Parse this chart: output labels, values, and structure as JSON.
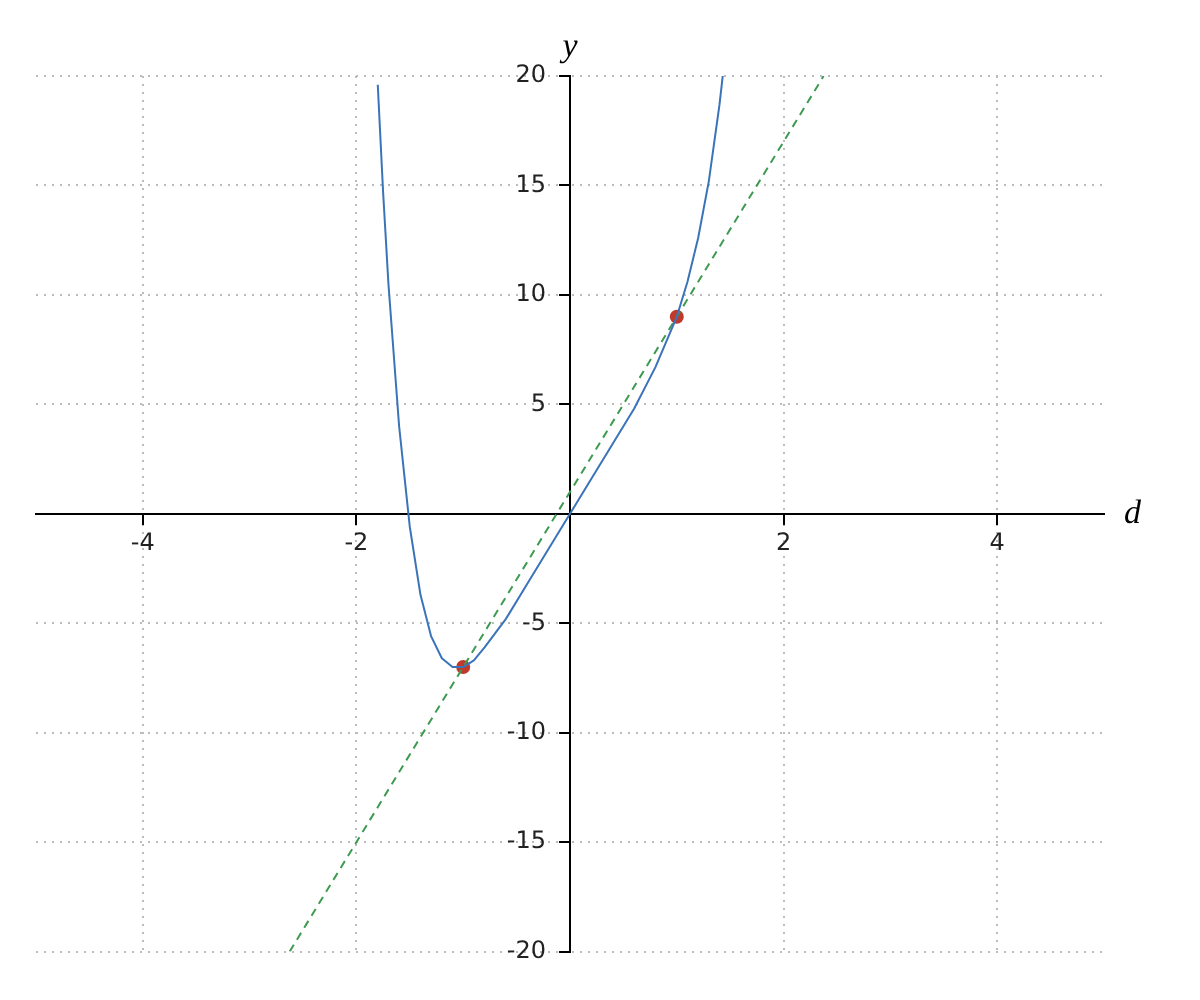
{
  "chart_data": {
    "type": "line",
    "xlabel": "d",
    "ylabel": "y",
    "xlim": [
      -5,
      5
    ],
    "ylim": [
      -20,
      20
    ],
    "xticks": [
      -4,
      -2,
      2,
      4
    ],
    "yticks": [
      -20,
      -15,
      -10,
      -5,
      5,
      10,
      15,
      20
    ],
    "grid": true,
    "legend": false,
    "series": [
      {
        "color": "#3b73b9",
        "marker": "none",
        "line_style": "solid",
        "x": [
          -1.8,
          -1.75,
          -1.7,
          -1.6,
          -1.5,
          -1.4,
          -1.3,
          -1.2,
          -1.1,
          -1.0,
          -0.9,
          -0.8,
          -0.6,
          -0.4,
          -0.2,
          0,
          0.2,
          0.4,
          0.6,
          0.8,
          1.0,
          1.1,
          1.2,
          1.3,
          1.4,
          1.43
        ],
        "values": [
          19.6,
          14.7,
          10.5,
          4.0,
          -0.6,
          -3.7,
          -5.6,
          -6.6,
          -7.0,
          -7.0,
          -6.7,
          -6.1,
          -4.8,
          -3.2,
          -1.6,
          0,
          1.6,
          3.2,
          4.8,
          6.7,
          9.0,
          10.6,
          12.6,
          15.2,
          18.7,
          20.0
        ]
      },
      {
        "color": "#3d9a50",
        "marker": "none",
        "line_style": "dashed",
        "x": [
          -2.625,
          2.375
        ],
        "values": [
          -20,
          20
        ]
      },
      {
        "type": "scatter",
        "color": "#c0392b",
        "marker": "circle",
        "x": [
          -1,
          1
        ],
        "values": [
          -7,
          9
        ]
      }
    ]
  }
}
